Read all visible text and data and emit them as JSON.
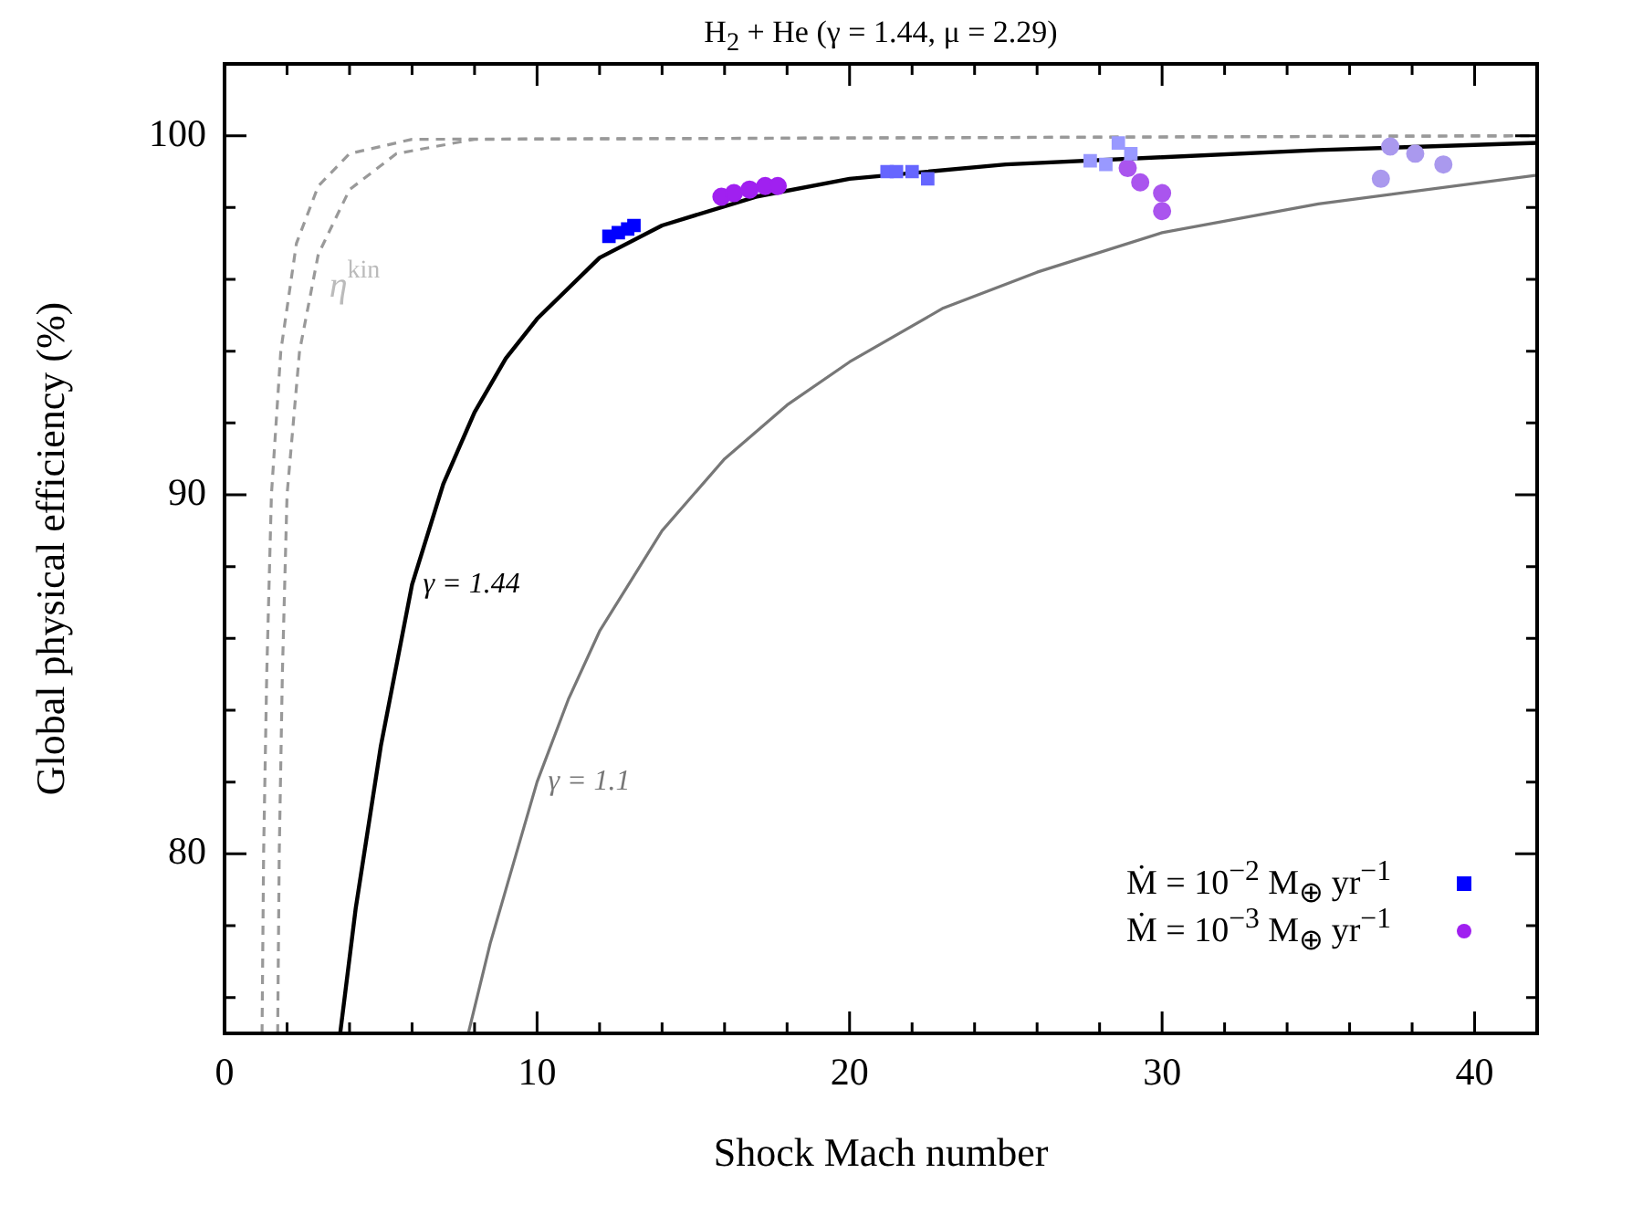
{
  "chart_data": {
    "type": "line",
    "title": "H$_{2}$ + He (γ = 1.44, μ = 2.29)",
    "xlabel": "Shock Mach number",
    "ylabel": "Global physical efficiency (%)",
    "xlim": [
      0,
      42
    ],
    "ylim": [
      75,
      102
    ],
    "xticks": [
      0,
      {
        "value": 2,
        "label": null
      },
      {
        "value": 4,
        "label": null
      },
      {
        "value": 6,
        "label": null
      },
      {
        "value": 8,
        "label": null
      },
      10,
      {
        "value": 12,
        "label": null
      },
      {
        "value": 14,
        "label": null
      },
      {
        "value": 16,
        "label": null
      },
      {
        "value": 18,
        "label": null
      },
      20,
      {
        "value": 22,
        "label": null
      },
      {
        "value": 24,
        "label": null
      },
      {
        "value": 26,
        "label": null
      },
      {
        "value": 28,
        "label": null
      },
      30,
      {
        "value": 32,
        "label": null
      },
      {
        "value": 34,
        "label": null
      },
      {
        "value": 36,
        "label": null
      },
      {
        "value": 38,
        "label": null
      },
      40,
      {
        "value": 42,
        "label": null
      }
    ],
    "yticks": [
      {
        "value": 76,
        "label": null
      },
      {
        "value": 78,
        "label": null
      },
      80,
      {
        "value": 82,
        "label": null
      },
      {
        "value": 84,
        "label": null
      },
      {
        "value": 86,
        "label": null
      },
      {
        "value": 88,
        "label": null
      },
      90,
      {
        "value": 92,
        "label": null
      },
      {
        "value": 94,
        "label": null
      },
      {
        "value": 96,
        "label": null
      },
      {
        "value": 98,
        "label": null
      },
      100,
      {
        "value": 102,
        "label": null
      }
    ],
    "grid": false,
    "legend": "bottom right",
    "annotations": [
      {
        "text": "η$^{kin}$",
        "x": 3,
        "y": 96.7
      },
      {
        "text": "γ = 1.44",
        "x": 6,
        "y": 87.5
      },
      {
        "text": "γ = 1.1",
        "x": 10,
        "y": 82
      }
    ],
    "series": [
      {
        "type": "line",
        "color": "#999999",
        "line_style": "dashed",
        "marker": "none",
        "x": [
          1.2,
          1.25,
          1.35,
          1.5,
          1.8,
          2.3,
          3,
          4,
          6,
          42
        ],
        "values": [
          75,
          80,
          85,
          90,
          94,
          97,
          98.6,
          99.5,
          99.9,
          100
        ]
      },
      {
        "type": "line",
        "color": "#999999",
        "line_style": "dashed",
        "marker": "none",
        "x": [
          1.7,
          1.75,
          1.85,
          2.0,
          2.4,
          3,
          4,
          5.5,
          8,
          42
        ],
        "values": [
          75,
          80,
          85,
          90,
          94,
          96.7,
          98.5,
          99.5,
          99.9,
          100
        ]
      },
      {
        "type": "line",
        "color": "#000000",
        "line_style": "solid",
        "marker": "none",
        "x": [
          3.7,
          4.2,
          5,
          6,
          7,
          8,
          9,
          10,
          12,
          14,
          17,
          20,
          25,
          30,
          35,
          42
        ],
        "values": [
          75,
          78.5,
          83,
          87.5,
          90.3,
          92.3,
          93.8,
          94.9,
          96.6,
          97.5,
          98.3,
          98.8,
          99.2,
          99.4,
          99.6,
          99.8
        ]
      },
      {
        "type": "line",
        "color": "#777777",
        "line_style": "solid",
        "marker": "none",
        "x": [
          7.8,
          8.5,
          9,
          10,
          11,
          12,
          14,
          16,
          18,
          20,
          23,
          26,
          30,
          35,
          42
        ],
        "values": [
          75,
          77.5,
          79,
          82,
          84.3,
          86.2,
          89,
          91,
          92.5,
          93.7,
          95.2,
          96.2,
          97.3,
          98.1,
          98.9
        ]
      },
      {
        "type": "scatter",
        "name": "Ṁ = 10$^{−2}$ M$_{⊕}$ yr$^{−1}$",
        "marker": "square",
        "color": "#0000ff",
        "x": [
          12.3,
          12.6,
          12.9,
          13.1,
          21.2,
          21.5,
          22.0,
          22.5,
          27.7,
          28.2,
          28.6,
          29.0
        ],
        "values": [
          97.2,
          97.3,
          97.4,
          97.5,
          99.0,
          99.0,
          99.0,
          98.8,
          99.3,
          99.2,
          99.8,
          99.5
        ],
        "colors": [
          "#0000ff",
          "#0000ff",
          "#0000ff",
          "#0000ff",
          "#6666ff",
          "#6666ff",
          "#6666ff",
          "#6666ff",
          "#9999ff",
          "#9999ff",
          "#9999ff",
          "#9999ff"
        ]
      },
      {
        "type": "scatter",
        "name": "Ṁ = 10$^{−3}$ M$_{⊕}$ yr$^{−1}$",
        "marker": "circle",
        "color": "#a020f0",
        "x": [
          15.9,
          16.3,
          16.8,
          17.3,
          17.7,
          28.9,
          29.3,
          30.0,
          30.0,
          37.0,
          37.3,
          38.1,
          39.0
        ],
        "values": [
          98.3,
          98.4,
          98.5,
          98.6,
          98.6,
          99.1,
          98.7,
          98.4,
          97.9,
          98.8,
          99.7,
          99.5,
          99.2
        ],
        "colors": [
          "#a020f0",
          "#a020f0",
          "#a020f0",
          "#a020f0",
          "#a020f0",
          "#aa55ee",
          "#aa55ee",
          "#aa55ee",
          "#aa55ee",
          "#aa99ee",
          "#aa99ee",
          "#aa99ee",
          "#aa99ee"
        ]
      }
    ]
  }
}
